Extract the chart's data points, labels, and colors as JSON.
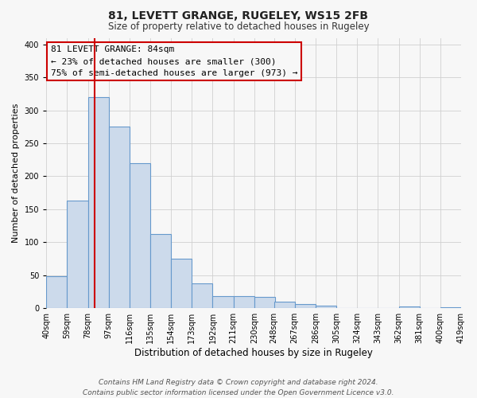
{
  "title": "81, LEVETT GRANGE, RUGELEY, WS15 2FB",
  "subtitle": "Size of property relative to detached houses in Rugeley",
  "xlabel": "Distribution of detached houses by size in Rugeley",
  "ylabel": "Number of detached properties",
  "bin_edges": [
    40,
    59,
    78,
    97,
    116,
    135,
    154,
    173,
    192,
    211,
    230,
    248,
    267,
    286,
    305,
    324,
    343,
    362,
    381,
    400,
    419
  ],
  "bar_heights": [
    48,
    163,
    320,
    275,
    220,
    113,
    75,
    38,
    18,
    18,
    17,
    10,
    6,
    4,
    0,
    0,
    0,
    3,
    0,
    2,
    2
  ],
  "bar_facecolor": "#ccdaeb",
  "bar_edgecolor": "#6699cc",
  "property_size": 84,
  "vline_color": "#cc0000",
  "annotation_title": "81 LEVETT GRANGE: 84sqm",
  "annotation_line1": "← 23% of detached houses are smaller (300)",
  "annotation_line2": "75% of semi-detached houses are larger (973) →",
  "ylim": [
    0,
    410
  ],
  "yticks": [
    0,
    50,
    100,
    150,
    200,
    250,
    300,
    350,
    400
  ],
  "tick_labels": [
    "40sqm",
    "59sqm",
    "78sqm",
    "97sqm",
    "116sqm",
    "135sqm",
    "154sqm",
    "173sqm",
    "192sqm",
    "211sqm",
    "230sqm",
    "248sqm",
    "267sqm",
    "286sqm",
    "305sqm",
    "324sqm",
    "343sqm",
    "362sqm",
    "381sqm",
    "400sqm",
    "419sqm"
  ],
  "footer_line1": "Contains HM Land Registry data © Crown copyright and database right 2024.",
  "footer_line2": "Contains public sector information licensed under the Open Government Licence v3.0.",
  "background_color": "#f7f7f7",
  "grid_color": "#d0d0d0",
  "title_fontsize": 10,
  "subtitle_fontsize": 8.5,
  "ylabel_fontsize": 8,
  "xlabel_fontsize": 8.5,
  "tick_fontsize": 7,
  "annotation_fontsize": 8,
  "footer_fontsize": 6.5
}
